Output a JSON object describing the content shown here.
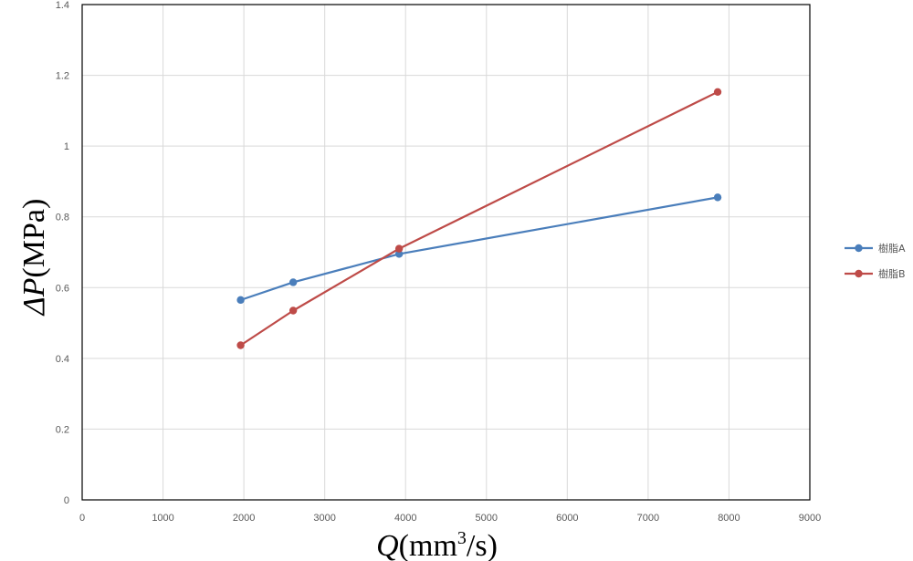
{
  "chart_data": {
    "type": "line",
    "x_axis": {
      "label_italic": "Q",
      "label_unit_prefix": "(mm",
      "label_superscript": "3",
      "label_unit_suffix": "/s)",
      "min": 0,
      "max": 9000,
      "step": 1000,
      "ticks": [
        "0",
        "1000",
        "2000",
        "3000",
        "4000",
        "5000",
        "6000",
        "7000",
        "8000",
        "9000"
      ]
    },
    "y_axis": {
      "label_italic": "ΔP",
      "label_unit": "(MPa)",
      "min": 0,
      "max": 1.4,
      "step": 0.2,
      "ticks": [
        "0",
        "0.2",
        "0.4",
        "0.6",
        "0.8",
        "1",
        "1.2",
        "1.4"
      ]
    },
    "grid": true,
    "legend_position": "right",
    "series": [
      {
        "name": "樹脂A",
        "color": "#4a7ebb",
        "x": [
          1960,
          2610,
          3920,
          7860
        ],
        "y": [
          0.565,
          0.615,
          0.695,
          0.855
        ]
      },
      {
        "name": "樹脂B",
        "color": "#be4b48",
        "x": [
          1960,
          2610,
          3920,
          7860
        ],
        "y": [
          0.437,
          0.535,
          0.71,
          1.153
        ]
      }
    ]
  }
}
